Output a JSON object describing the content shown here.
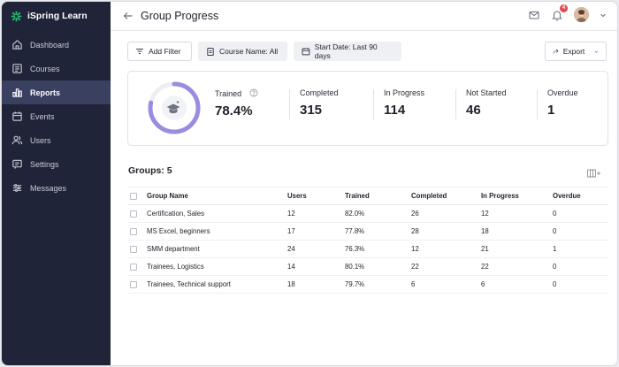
{
  "app": {
    "name": "iSpring Learn"
  },
  "sidebar": {
    "items": [
      {
        "label": "Dashboard",
        "icon": "dashboard-icon",
        "active": false
      },
      {
        "label": "Courses",
        "icon": "courses-icon",
        "active": false
      },
      {
        "label": "Reports",
        "icon": "reports-icon",
        "active": true
      },
      {
        "label": "Events",
        "icon": "calendar-icon",
        "active": false
      },
      {
        "label": "Users",
        "icon": "users-icon",
        "active": false
      },
      {
        "label": "Settings",
        "icon": "settings-icon",
        "active": false
      },
      {
        "label": "Messages",
        "icon": "messages-icon",
        "active": false
      }
    ]
  },
  "header": {
    "title": "Group Progress",
    "notification_count": "4"
  },
  "filters": {
    "add_filter": "Add Filter",
    "course_name": "Course Name: All",
    "start_date": "Start Date: Last 90 days",
    "export": "Export"
  },
  "summary": {
    "trained_label": "Trained",
    "trained_value": "78.4%",
    "trained_fraction": 0.784,
    "completed_label": "Completed",
    "completed_value": "315",
    "in_progress_label": "In Progress",
    "in_progress_value": "114",
    "not_started_label": "Not Started",
    "not_started_value": "46",
    "overdue_label": "Overdue",
    "overdue_value": "1"
  },
  "groups": {
    "title": "Groups: 5",
    "columns": [
      "Group Name",
      "Users",
      "Trained",
      "Completed",
      "In Progress",
      "Overdue"
    ],
    "rows": [
      [
        "Certification, Sales",
        "12",
        "82.0%",
        "26",
        "12",
        "0"
      ],
      [
        "MS Excel, beginners",
        "17",
        "77.8%",
        "28",
        "18",
        "0"
      ],
      [
        "SMM department",
        "24",
        "76.3%",
        "12",
        "21",
        "1"
      ],
      [
        "Trainees, Logistics",
        "14",
        "80.1%",
        "22",
        "22",
        "0"
      ],
      [
        "Trainees, Technical support",
        "18",
        "79.7%",
        "6",
        "6",
        "0"
      ]
    ]
  },
  "colors": {
    "sidebar": "#1f2438",
    "sidebar_active": "#3a4060",
    "accent": "#9b8ce0",
    "ring_track": "#eceef2",
    "brand": "#2bb673"
  }
}
